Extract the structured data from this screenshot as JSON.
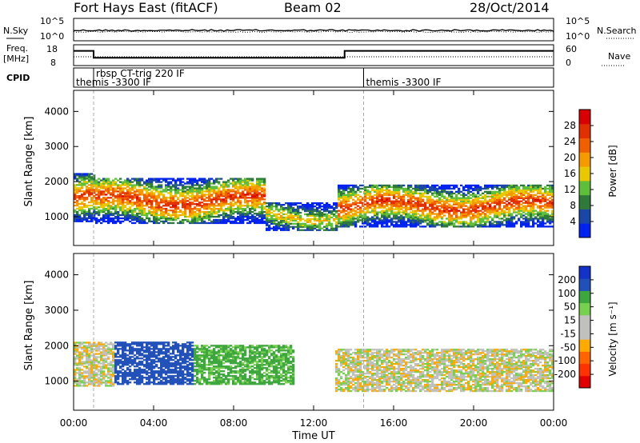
{
  "header": {
    "station": "Fort Hays East (fitACF)",
    "beam": "Beam 02",
    "date": "28/Oct/2014"
  },
  "noise_panel": {
    "left_label": "N.Sky",
    "right_label": "N.Search",
    "left_ticks": [
      "10^5",
      "10^0"
    ],
    "right_ticks": [
      "10^5",
      "10^0"
    ]
  },
  "freq_panel": {
    "left_label_1": "Freq.",
    "left_label_2": "[MHz]",
    "right_label": "Nave",
    "left_ticks": [
      "18",
      "8"
    ],
    "right_ticks": [
      "60",
      "0"
    ],
    "freq_steps": [
      {
        "t": 0.0,
        "mhz": 14.5
      },
      {
        "t": 1.0,
        "mhz": 10.5
      },
      {
        "t": 13.55,
        "mhz": 14.5
      },
      {
        "t": 24.0,
        "mhz": 14.5
      }
    ]
  },
  "cpid_panel": {
    "label": "CPID",
    "segments": [
      {
        "start": 0.0,
        "text": "themis -3300 IF",
        "row": 2
      },
      {
        "start": 1.0,
        "text": "rbsp CT-trig 220 IF",
        "row": 1
      },
      {
        "start": 14.5,
        "text": "themis -3300 IF",
        "row": 2
      }
    ]
  },
  "xaxis": {
    "label": "Time UT",
    "ticks": [
      "00:00",
      "04:00",
      "08:00",
      "12:00",
      "16:00",
      "20:00",
      "00:00"
    ]
  },
  "colors": {
    "power_scale": [
      "#0022ee",
      "#1a46a8",
      "#2f7a3a",
      "#5fbf3a",
      "#e8c800",
      "#f59a00",
      "#f06000",
      "#e03000",
      "#d80000"
    ],
    "velocity_scale": [
      "#1232c8",
      "#2050b8",
      "#3ea63e",
      "#78d050",
      "#c0c0bc",
      "#c0c0bc",
      "#ffaa00",
      "#ff6400",
      "#ff3200",
      "#e00000"
    ]
  },
  "chart_data": [
    {
      "type": "heatmap",
      "title": "Power",
      "xlabel": "",
      "ylabel": "Slant Range [km]",
      "yticks": [
        "1000",
        "2000",
        "3000",
        "4000"
      ],
      "xlim": [
        0,
        24
      ],
      "ylim": [
        180,
        4600
      ],
      "colorbar": {
        "label": "Power [dB]",
        "ticks": [
          "4",
          "8",
          "12",
          "16",
          "20",
          "24",
          "28"
        ],
        "range": [
          0,
          32
        ]
      },
      "series": [
        {
          "from": 0.0,
          "to": 1.0,
          "band_km": [
            850,
            2200
          ],
          "peak_db": 26
        },
        {
          "from": 1.0,
          "to": 9.5,
          "band_km": [
            800,
            2100
          ],
          "peak_db": 27
        },
        {
          "from": 9.5,
          "to": 13.2,
          "band_km": [
            600,
            1400
          ],
          "peak_db": 18
        },
        {
          "from": 13.2,
          "to": 24.0,
          "band_km": [
            700,
            1900
          ],
          "peak_db": 27
        }
      ]
    },
    {
      "type": "heatmap",
      "title": "Velocity",
      "xlabel": "Time UT",
      "ylabel": "Slant Range [km]",
      "yticks": [
        "1000",
        "2000",
        "3000",
        "4000"
      ],
      "xlim": [
        0,
        24
      ],
      "ylim": [
        180,
        4600
      ],
      "colorbar": {
        "label": "Velocity [m s⁻¹]",
        "ticks": [
          "200",
          "100",
          "50",
          "15",
          "-15",
          "-50",
          "-100",
          "-200"
        ],
        "range": [
          -250,
          250
        ]
      },
      "series": [
        {
          "from": 0.0,
          "to": 2.0,
          "band_km": [
            850,
            2100
          ],
          "velocity": 0
        },
        {
          "from": 2.0,
          "to": 6.0,
          "band_km": [
            900,
            2100
          ],
          "velocity": 110
        },
        {
          "from": 6.0,
          "to": 11.0,
          "band_km": [
            900,
            2000
          ],
          "velocity": 45
        },
        {
          "from": 13.0,
          "to": 24.0,
          "band_km": [
            700,
            1900
          ],
          "velocity": 0
        }
      ]
    }
  ]
}
